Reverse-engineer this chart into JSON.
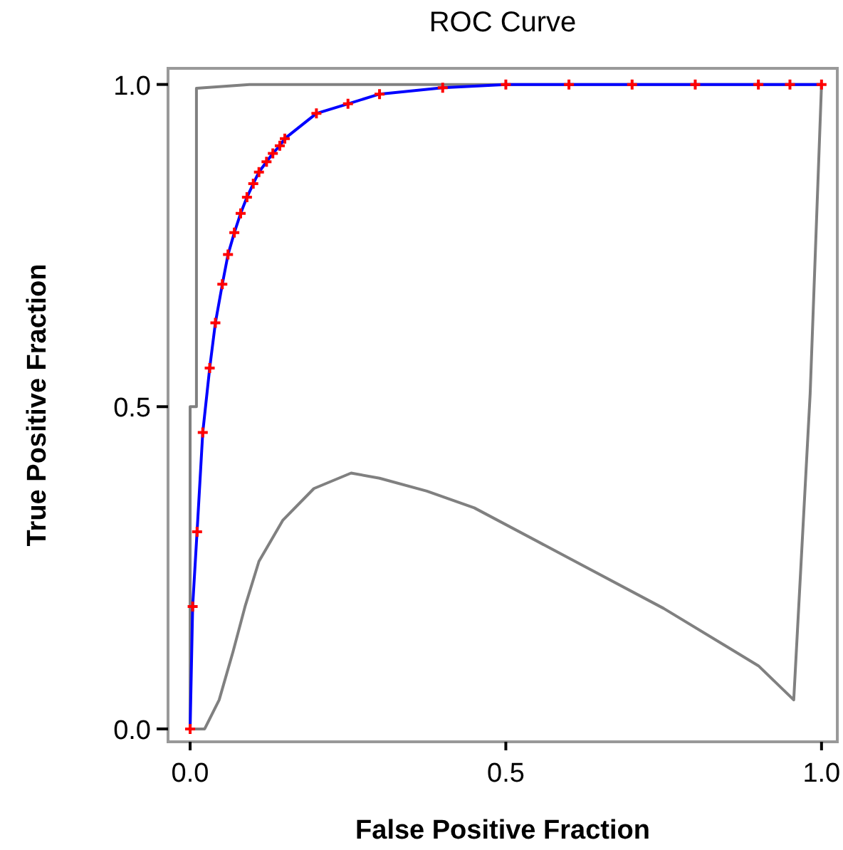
{
  "chart_data": {
    "type": "line",
    "title": "ROC Curve",
    "xlabel": "False Positive Fraction",
    "ylabel": "True Positive Fraction",
    "xlim": [
      -0.035,
      1.025
    ],
    "ylim": [
      -0.02,
      1.025
    ],
    "xticks": [
      {
        "value": 0,
        "label": "0.0"
      },
      0.5,
      {
        "value": 1,
        "label": "1.0"
      }
    ],
    "yticks": [
      {
        "value": 0,
        "label": "0.0"
      },
      0.5,
      {
        "value": 1,
        "label": "1.0"
      }
    ],
    "grid": false,
    "line_style": "solid",
    "series": [
      {
        "type": "line",
        "color": "#808080",
        "marker": "none",
        "x": [
          0,
          0.023,
          0.046,
          0.068,
          0.087,
          0.109,
          0.147,
          0.196,
          0.255,
          0.3,
          0.375,
          0.45,
          0.6,
          0.75,
          0.9,
          0.956,
          0.982,
          1.0
        ],
        "values": [
          0,
          0,
          0.045,
          0.12,
          0.19,
          0.26,
          0.324,
          0.373,
          0.397,
          0.389,
          0.369,
          0.343,
          0.265,
          0.187,
          0.098,
          0.045,
          0.52,
          1.0
        ]
      },
      {
        "type": "line",
        "color": "#808080",
        "marker": "none",
        "x": [
          0,
          0,
          0.01,
          0.01,
          0.094,
          1.0
        ],
        "values": [
          0,
          0.5,
          0.5,
          0.994,
          1.0,
          1.0
        ]
      },
      {
        "type": "line",
        "color": "#0000ff",
        "marker": "none",
        "x": [
          0,
          0.004,
          0.011,
          0.02,
          0.031,
          0.04,
          0.051,
          0.06,
          0.07,
          0.08,
          0.09,
          0.1,
          0.109,
          0.121,
          0.131,
          0.142,
          0.15,
          0.2,
          0.25,
          0.3,
          0.4,
          0.5,
          0.6,
          0.7,
          0.8,
          0.9,
          0.95,
          1.0
        ],
        "values": [
          0,
          0.19,
          0.306,
          0.46,
          0.56,
          0.63,
          0.69,
          0.736,
          0.77,
          0.8,
          0.825,
          0.846,
          0.864,
          0.88,
          0.893,
          0.905,
          0.916,
          0.955,
          0.97,
          0.985,
          0.995,
          1.0,
          1.0,
          1.0,
          1.0,
          1.0,
          1.0,
          1.0
        ]
      },
      {
        "type": "scatter",
        "color": "#ff0000",
        "marker": "cross",
        "x": [
          0,
          0.004,
          0.011,
          0.02,
          0.031,
          0.04,
          0.051,
          0.06,
          0.07,
          0.08,
          0.09,
          0.1,
          0.109,
          0.121,
          0.131,
          0.142,
          0.15,
          0.2,
          0.25,
          0.3,
          0.4,
          0.5,
          0.6,
          0.7,
          0.8,
          0.9,
          0.95,
          1.0
        ],
        "values": [
          0,
          0.19,
          0.306,
          0.46,
          0.56,
          0.63,
          0.69,
          0.736,
          0.77,
          0.8,
          0.825,
          0.846,
          0.864,
          0.88,
          0.893,
          0.905,
          0.916,
          0.955,
          0.97,
          0.985,
          0.995,
          1.0,
          1.0,
          1.0,
          1.0,
          1.0,
          1.0,
          1.0
        ]
      }
    ]
  }
}
